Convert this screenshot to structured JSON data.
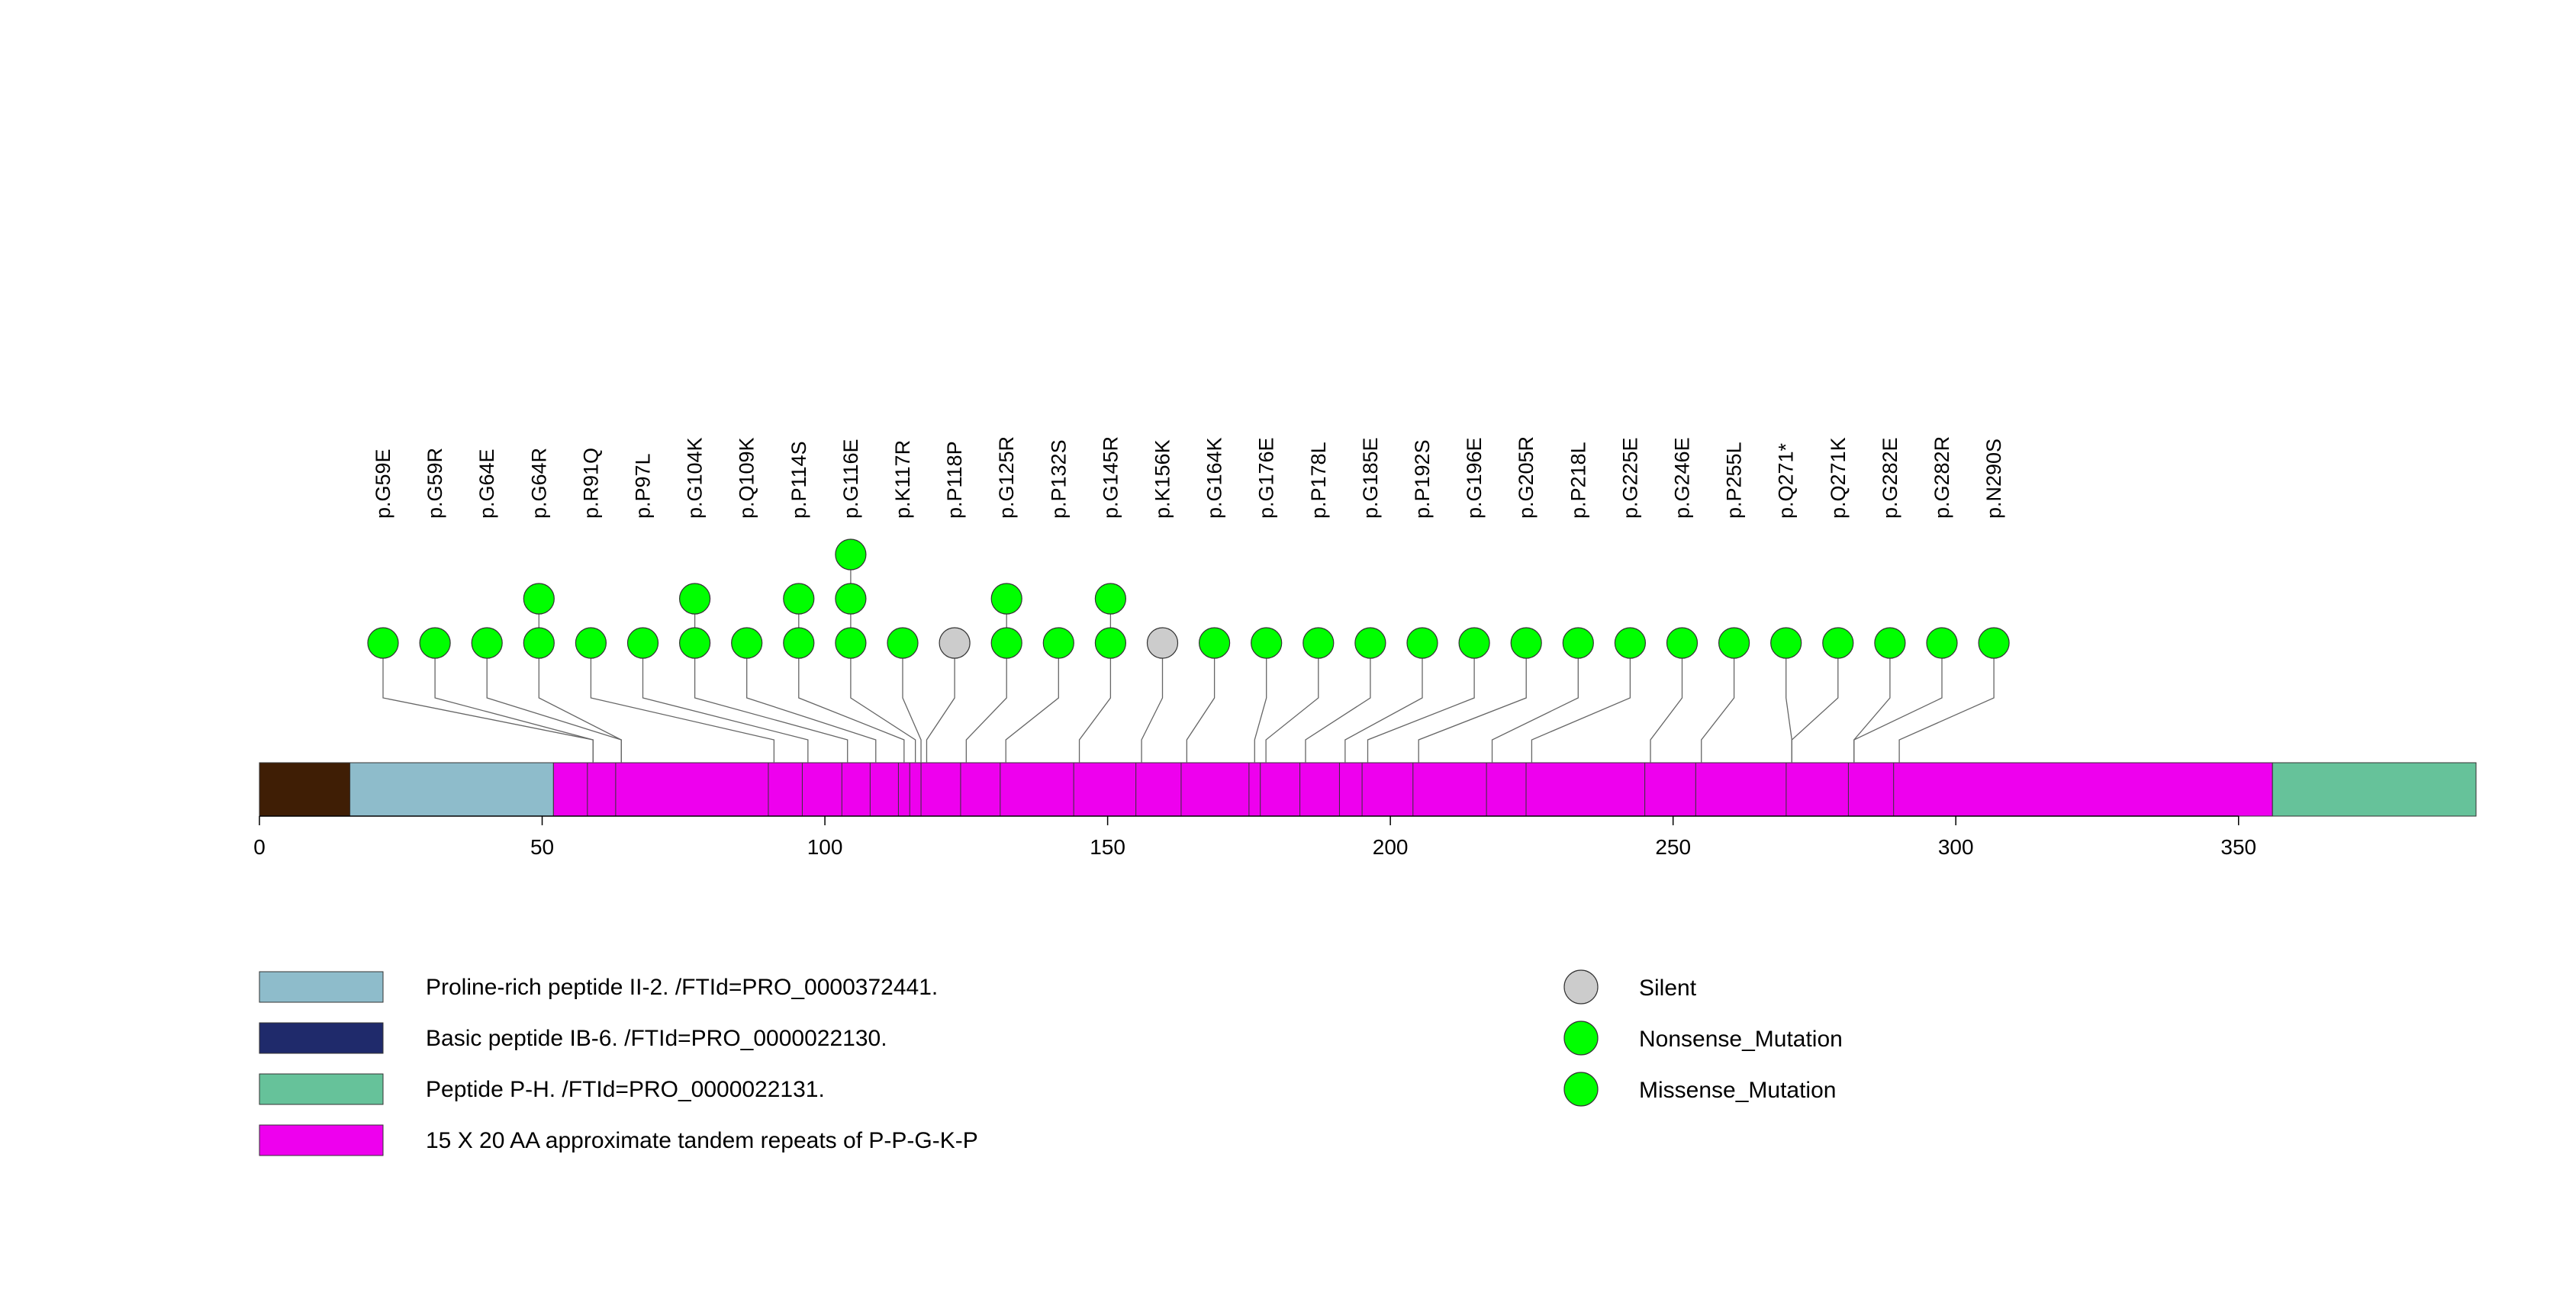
{
  "protein": {
    "length": 392,
    "axis_ticks": [
      0,
      50,
      100,
      150,
      200,
      250,
      300,
      350
    ],
    "base_color": "#3f1e05",
    "domains": [
      {
        "start": 16,
        "end": 52,
        "color": "#8ebccb",
        "legend": 0
      },
      {
        "start": 52,
        "end": 356,
        "color": "#ee00ee",
        "legend": 3
      },
      {
        "start": 356,
        "end": 392,
        "color": "#66c29a",
        "legend": 2
      }
    ],
    "repeat_boundaries": [
      58,
      63,
      90,
      96,
      103,
      108,
      113,
      115,
      117,
      124,
      131,
      144,
      155,
      163,
      175,
      177,
      184,
      191,
      195,
      204,
      217,
      224,
      245,
      254,
      270,
      281,
      289
    ]
  },
  "mutations": [
    {
      "label": "p.G59E",
      "pos": 59,
      "count": 1,
      "type": "missense"
    },
    {
      "label": "p.G59R",
      "pos": 59,
      "count": 1,
      "type": "missense"
    },
    {
      "label": "p.G64E",
      "pos": 64,
      "count": 1,
      "type": "missense"
    },
    {
      "label": "p.G64R",
      "pos": 64,
      "count": 2,
      "type": "missense"
    },
    {
      "label": "p.R91Q",
      "pos": 91,
      "count": 1,
      "type": "missense"
    },
    {
      "label": "p.P97L",
      "pos": 97,
      "count": 1,
      "type": "missense"
    },
    {
      "label": "p.G104K",
      "pos": 104,
      "count": 2,
      "type": "missense"
    },
    {
      "label": "p.Q109K",
      "pos": 109,
      "count": 1,
      "type": "missense"
    },
    {
      "label": "p.P114S",
      "pos": 114,
      "count": 2,
      "type": "missense"
    },
    {
      "label": "p.G116E",
      "pos": 116,
      "count": 3,
      "type": "missense"
    },
    {
      "label": "p.K117R",
      "pos": 117,
      "count": 1,
      "type": "missense"
    },
    {
      "label": "p.P118P",
      "pos": 118,
      "count": 1,
      "type": "silent"
    },
    {
      "label": "p.G125R",
      "pos": 125,
      "count": 2,
      "type": "missense"
    },
    {
      "label": "p.P132S",
      "pos": 132,
      "count": 1,
      "type": "missense"
    },
    {
      "label": "p.G145R",
      "pos": 145,
      "count": 2,
      "type": "missense"
    },
    {
      "label": "p.K156K",
      "pos": 156,
      "count": 1,
      "type": "silent"
    },
    {
      "label": "p.G164K",
      "pos": 164,
      "count": 1,
      "type": "missense"
    },
    {
      "label": "p.G176E",
      "pos": 176,
      "count": 1,
      "type": "missense"
    },
    {
      "label": "p.P178L",
      "pos": 178,
      "count": 1,
      "type": "missense"
    },
    {
      "label": "p.G185E",
      "pos": 185,
      "count": 1,
      "type": "missense"
    },
    {
      "label": "p.P192S",
      "pos": 192,
      "count": 1,
      "type": "missense"
    },
    {
      "label": "p.G196E",
      "pos": 196,
      "count": 1,
      "type": "missense"
    },
    {
      "label": "p.G205R",
      "pos": 205,
      "count": 1,
      "type": "missense"
    },
    {
      "label": "p.P218L",
      "pos": 218,
      "count": 1,
      "type": "missense"
    },
    {
      "label": "p.G225E",
      "pos": 225,
      "count": 1,
      "type": "missense"
    },
    {
      "label": "p.G246E",
      "pos": 246,
      "count": 1,
      "type": "missense"
    },
    {
      "label": "p.P255L",
      "pos": 255,
      "count": 1,
      "type": "missense"
    },
    {
      "label": "p.Q271*",
      "pos": 271,
      "count": 1,
      "type": "nonsense"
    },
    {
      "label": "p.Q271K",
      "pos": 271,
      "count": 1,
      "type": "missense"
    },
    {
      "label": "p.G282E",
      "pos": 282,
      "count": 1,
      "type": "missense"
    },
    {
      "label": "p.G282R",
      "pos": 282,
      "count": 1,
      "type": "missense"
    },
    {
      "label": "p.N290S",
      "pos": 290,
      "count": 1,
      "type": "missense"
    }
  ],
  "legend_domains": [
    {
      "label": "Proline-rich peptide II-2. /FTId=PRO_0000372441.",
      "color": "#8ebccb"
    },
    {
      "label": "Basic peptide IB-6. /FTId=PRO_0000022130.",
      "color": "#1f2a6b"
    },
    {
      "label": "Peptide P-H. /FTId=PRO_0000022131.",
      "color": "#66c29a"
    },
    {
      "label": "15 X 20 AA approximate tandem repeats of P-P-G-K-P",
      "color": "#ee00ee"
    }
  ],
  "legend_mutations": [
    {
      "label": "Silent",
      "color": "#cccccc"
    },
    {
      "label": "Nonsense_Mutation",
      "color": "#00ff00"
    },
    {
      "label": "Missense_Mutation",
      "color": "#00ff00"
    }
  ],
  "colors": {
    "missense": "#00ff00",
    "nonsense": "#00ff00",
    "silent": "#cccccc",
    "circle_stroke": "#333333",
    "line": "#666666"
  }
}
